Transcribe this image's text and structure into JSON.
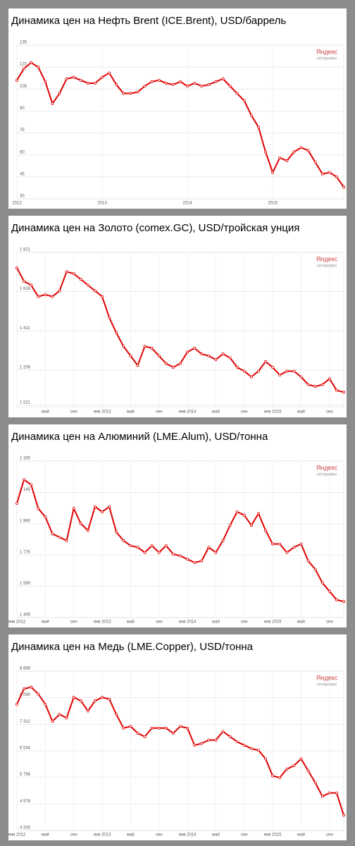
{
  "chart_data": [
    {
      "type": "line",
      "title": "Динамика цен на Нефть Brent (ICE.Brent), USD/баррель",
      "watermark": "Яндекс",
      "watermark_sub": "котировки",
      "categories": [
        "2012",
        null,
        null,
        null,
        null,
        null,
        null,
        null,
        null,
        null,
        null,
        null,
        "2013",
        null,
        null,
        null,
        null,
        null,
        null,
        null,
        null,
        null,
        null,
        null,
        "2014",
        null,
        null,
        null,
        null,
        null,
        null,
        null,
        null,
        null,
        null,
        null,
        "2015",
        null,
        null,
        null,
        null,
        null,
        null,
        null,
        null,
        null,
        null
      ],
      "series": [
        {
          "name": "ICE.Brent",
          "color": "#e00000",
          "values": [
            111,
            119,
            123,
            120,
            110,
            95,
            102,
            112,
            113,
            111,
            109,
            109,
            113,
            116,
            108,
            102,
            102,
            103,
            107,
            110,
            111,
            109,
            108,
            110,
            107,
            109,
            107,
            108,
            110,
            112,
            107,
            102,
            97,
            87,
            79,
            62,
            48,
            58,
            56,
            62,
            65,
            63,
            55,
            47,
            48,
            45,
            38
          ]
        }
      ],
      "ylim": [
        30,
        135
      ],
      "yticks": [
        30,
        45,
        60,
        75,
        90,
        105,
        120,
        135
      ],
      "grid": true
    },
    {
      "type": "line",
      "title": "Динамика цен на Золото (comex.GC), USD/тройская унция",
      "watermark": "Яндекс",
      "watermark_sub": "котировки",
      "categories": [
        null,
        null,
        null,
        null,
        "май",
        null,
        null,
        null,
        "сен",
        null,
        null,
        null,
        "янв 2013",
        null,
        null,
        null,
        "май",
        null,
        null,
        null,
        "сен",
        null,
        null,
        null,
        "янв 2014",
        null,
        null,
        null,
        "май",
        null,
        null,
        null,
        "сен",
        null,
        null,
        null,
        "янв 2015",
        null,
        null,
        null,
        "май",
        null,
        null,
        null,
        "сен",
        null,
        null
      ],
      "series": [
        {
          "name": "comex.GC",
          "color": "#e00000",
          "values": [
            1740,
            1670,
            1650,
            1590,
            1600,
            1590,
            1620,
            1720,
            1710,
            1680,
            1650,
            1620,
            1590,
            1480,
            1400,
            1330,
            1280,
            1230,
            1330,
            1320,
            1280,
            1240,
            1220,
            1240,
            1300,
            1320,
            1290,
            1280,
            1260,
            1290,
            1270,
            1220,
            1200,
            1170,
            1200,
            1250,
            1220,
            1180,
            1200,
            1200,
            1170,
            1130,
            1120,
            1130,
            1160,
            1100,
            1090
          ]
        }
      ],
      "ylim": [
        1010,
        1821
      ],
      "yticks": [
        {
          "value": 1021,
          "label": "1 021"
        },
        {
          "value": 1206,
          "label": "1 206"
        },
        {
          "value": 1411,
          "label": "1 411"
        },
        {
          "value": 1616,
          "label": "1 616"
        },
        {
          "value": 1821,
          "label": "1 821"
        }
      ],
      "grid": true
    },
    {
      "type": "line",
      "title": "Динамика цен на Алюминий (LME.Alum), USD/тонна",
      "watermark": "Яндекс",
      "watermark_sub": "котировки",
      "categories": [
        "янв 2012",
        null,
        null,
        null,
        "май",
        null,
        null,
        null,
        "сен",
        null,
        null,
        null,
        "янв 2013",
        null,
        null,
        null,
        "май",
        null,
        null,
        null,
        "сен",
        null,
        null,
        null,
        "янв 2014",
        null,
        null,
        null,
        "май",
        null,
        null,
        null,
        "сен",
        null,
        null,
        null,
        "янв 2015",
        null,
        null,
        null,
        "май",
        null,
        null,
        null,
        "сен",
        null,
        null
      ],
      "series": [
        {
          "name": "LME.Alum",
          "color": "#e00000",
          "values": [
            2080,
            2220,
            2190,
            2050,
            2000,
            1900,
            1880,
            1860,
            2050,
            1960,
            1920,
            2060,
            2030,
            2060,
            1910,
            1860,
            1830,
            1820,
            1790,
            1830,
            1790,
            1830,
            1780,
            1770,
            1750,
            1730,
            1740,
            1820,
            1790,
            1860,
            1950,
            2030,
            2010,
            1950,
            2020,
            1920,
            1840,
            1840,
            1790,
            1820,
            1840,
            1740,
            1690,
            1610,
            1560,
            1510,
            1500
          ]
        }
      ],
      "ylim": [
        1405,
        2330
      ],
      "yticks": [
        {
          "value": 1405,
          "label": "1 405"
        },
        {
          "value": 1590,
          "label": "1 590"
        },
        {
          "value": 1775,
          "label": "1 775"
        },
        {
          "value": 1960,
          "label": "1 960"
        },
        {
          "value": 2145,
          "label": "2 145"
        },
        {
          "value": 2330,
          "label": "2 330"
        }
      ],
      "grid": true
    },
    {
      "type": "line",
      "title": "Динамика цен на Медь (LME.Copper), USD/тонна",
      "watermark": "Яндекс",
      "watermark_sub": "котировки",
      "categories": [
        "янв 2012",
        null,
        null,
        null,
        "май",
        null,
        null,
        null,
        "сен",
        null,
        null,
        null,
        "янв 2013",
        null,
        null,
        null,
        "май",
        null,
        null,
        null,
        "сен",
        null,
        null,
        null,
        "янв 2014",
        null,
        null,
        null,
        "май",
        null,
        null,
        null,
        "сен",
        null,
        null,
        null,
        "янв 2015",
        null,
        null,
        null,
        "май",
        null,
        null,
        null,
        "сен",
        null,
        null
      ],
      "series": [
        {
          "name": "LME.Copper",
          "color": "#e00000",
          "values": [
            7900,
            8350,
            8400,
            8200,
            7900,
            7400,
            7600,
            7500,
            8100,
            8000,
            7700,
            8000,
            8100,
            8050,
            7600,
            7200,
            7250,
            7050,
            6950,
            7200,
            7200,
            7200,
            7050,
            7250,
            7200,
            6700,
            6750,
            6850,
            6850,
            7100,
            6950,
            6800,
            6700,
            6600,
            6550,
            6300,
            5800,
            5750,
            6000,
            6100,
            6300,
            5950,
            5600,
            5200,
            5300,
            5300,
            4650
          ]
        }
      ],
      "ylim": [
        4200,
        8868
      ],
      "yticks": [
        {
          "value": 4200,
          "label": "4 200"
        },
        {
          "value": 4978,
          "label": "4 978"
        },
        {
          "value": 5756,
          "label": "5 756"
        },
        {
          "value": 6534,
          "label": "6 534"
        },
        {
          "value": 7312,
          "label": "7 312"
        },
        {
          "value": 8090,
          "label": "8 090"
        },
        {
          "value": 8868,
          "label": "8 868"
        }
      ],
      "grid": true
    }
  ]
}
